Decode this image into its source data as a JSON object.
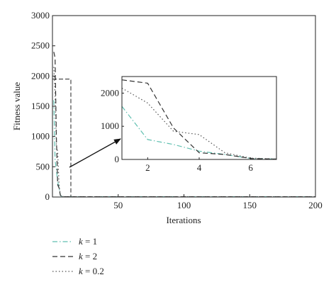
{
  "chart_data": {
    "type": "line",
    "title": "",
    "xlabel": "Iterations",
    "ylabel": "Fitness value",
    "xlim": [
      0,
      200
    ],
    "ylim": [
      0,
      3000
    ],
    "xticks": [
      50,
      100,
      150,
      200
    ],
    "yticks": [
      0,
      500,
      1000,
      1500,
      2000,
      2500,
      3000
    ],
    "grid": false,
    "legend_position": "bottom-left",
    "series": [
      {
        "name_prefix": "k",
        "name_value": "= 1",
        "color": "#5fbfb0",
        "dash": "dash-dot",
        "points": [
          [
            1,
            1600
          ],
          [
            2,
            600
          ],
          [
            3,
            450
          ],
          [
            4,
            250
          ],
          [
            5,
            150
          ],
          [
            6,
            30
          ],
          [
            7,
            10
          ],
          [
            8,
            8
          ],
          [
            10,
            5
          ],
          [
            200,
            5
          ]
        ]
      },
      {
        "name_prefix": "k",
        "name_value": "= 2",
        "color": "#333333",
        "dash": "dashed",
        "points": [
          [
            1,
            2400
          ],
          [
            2,
            2300
          ],
          [
            3,
            950
          ],
          [
            4,
            200
          ],
          [
            5,
            150
          ],
          [
            6,
            30
          ],
          [
            7,
            10
          ],
          [
            8,
            8
          ],
          [
            10,
            5
          ],
          [
            200,
            5
          ]
        ]
      },
      {
        "name_prefix": "k",
        "name_value": "= 0.2",
        "color": "#555555",
        "dash": "dotted",
        "points": [
          [
            1,
            2150
          ],
          [
            2,
            1700
          ],
          [
            3,
            850
          ],
          [
            4,
            750
          ],
          [
            5,
            200
          ],
          [
            6,
            40
          ],
          [
            7,
            15
          ],
          [
            8,
            8
          ],
          [
            10,
            5
          ],
          [
            200,
            5
          ]
        ]
      }
    ],
    "zoom_box": {
      "xlim": [
        0,
        14
      ],
      "ylim": [
        0,
        1950
      ]
    },
    "inset": {
      "xlim": [
        1,
        7
      ],
      "ylim": [
        0,
        2500
      ],
      "xticks": [
        2,
        4,
        6
      ],
      "yticks": [
        0,
        1000,
        2000
      ]
    }
  }
}
